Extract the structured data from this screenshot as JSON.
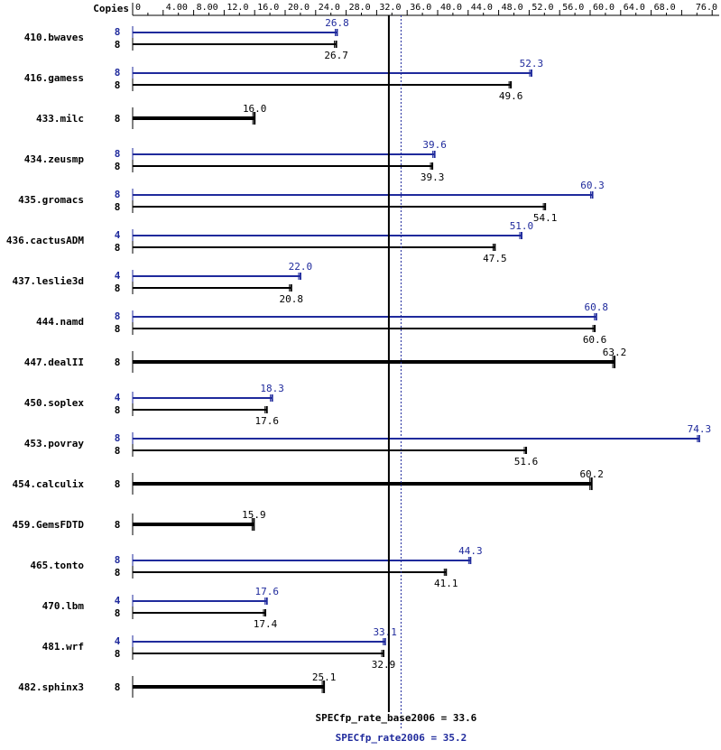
{
  "chart_data": {
    "type": "bar",
    "copies_label": "Copies",
    "x_ticks": [
      "0",
      "4.00",
      "8.00",
      "12.0",
      "16.0",
      "20.0",
      "24.0",
      "28.0",
      "32.0",
      "36.0",
      "40.0",
      "44.0",
      "48.0",
      "52.0",
      "56.0",
      "60.0",
      "64.0",
      "68.0",
      "76.0"
    ],
    "x_tick_values": [
      0,
      4,
      8,
      12,
      16,
      20,
      24,
      28,
      32,
      36,
      40,
      44,
      48,
      52,
      56,
      60,
      64,
      68,
      76
    ],
    "xlim": [
      0,
      76
    ],
    "series": [
      {
        "name": "SPECfp_rate2006",
        "color": "#1f2a9c"
      },
      {
        "name": "SPECfp_rate_base2006",
        "color": "#000000"
      }
    ],
    "benchmarks": [
      {
        "name": "410.bwaves",
        "peak_copies": "8",
        "peak": 26.8,
        "peak_label": "26.8",
        "base_copies": "8",
        "base": 26.7,
        "base_label": "26.7"
      },
      {
        "name": "416.gamess",
        "peak_copies": "8",
        "peak": 52.3,
        "peak_label": "52.3",
        "base_copies": "8",
        "base": 49.6,
        "base_label": "49.6"
      },
      {
        "name": "433.milc",
        "peak_copies": null,
        "peak": null,
        "peak_label": null,
        "base_copies": "8",
        "base": 16.0,
        "base_label": "16.0"
      },
      {
        "name": "434.zeusmp",
        "peak_copies": "8",
        "peak": 39.6,
        "peak_label": "39.6",
        "base_copies": "8",
        "base": 39.3,
        "base_label": "39.3"
      },
      {
        "name": "435.gromacs",
        "peak_copies": "8",
        "peak": 60.3,
        "peak_label": "60.3",
        "base_copies": "8",
        "base": 54.1,
        "base_label": "54.1"
      },
      {
        "name": "436.cactusADM",
        "peak_copies": "4",
        "peak": 51.0,
        "peak_label": "51.0",
        "base_copies": "8",
        "base": 47.5,
        "base_label": "47.5"
      },
      {
        "name": "437.leslie3d",
        "peak_copies": "4",
        "peak": 22.0,
        "peak_label": "22.0",
        "base_copies": "8",
        "base": 20.8,
        "base_label": "20.8"
      },
      {
        "name": "444.namd",
        "peak_copies": "8",
        "peak": 60.8,
        "peak_label": "60.8",
        "base_copies": "8",
        "base": 60.6,
        "base_label": "60.6"
      },
      {
        "name": "447.dealII",
        "peak_copies": null,
        "peak": null,
        "peak_label": null,
        "base_copies": "8",
        "base": 63.2,
        "base_label": "63.2"
      },
      {
        "name": "450.soplex",
        "peak_copies": "4",
        "peak": 18.3,
        "peak_label": "18.3",
        "base_copies": "8",
        "base": 17.6,
        "base_label": "17.6"
      },
      {
        "name": "453.povray",
        "peak_copies": "8",
        "peak": 74.3,
        "peak_label": "74.3",
        "base_copies": "8",
        "base": 51.6,
        "base_label": "51.6"
      },
      {
        "name": "454.calculix",
        "peak_copies": null,
        "peak": null,
        "peak_label": null,
        "base_copies": "8",
        "base": 60.2,
        "base_label": "60.2"
      },
      {
        "name": "459.GemsFDTD",
        "peak_copies": null,
        "peak": null,
        "peak_label": null,
        "base_copies": "8",
        "base": 15.9,
        "base_label": "15.9"
      },
      {
        "name": "465.tonto",
        "peak_copies": "8",
        "peak": 44.3,
        "peak_label": "44.3",
        "base_copies": "8",
        "base": 41.1,
        "base_label": "41.1"
      },
      {
        "name": "470.lbm",
        "peak_copies": "4",
        "peak": 17.6,
        "peak_label": "17.6",
        "base_copies": "8",
        "base": 17.4,
        "base_label": "17.4"
      },
      {
        "name": "481.wrf",
        "peak_copies": "4",
        "peak": 33.1,
        "peak_label": "33.1",
        "base_copies": "8",
        "base": 32.9,
        "base_label": "32.9"
      },
      {
        "name": "482.sphinx3",
        "peak_copies": null,
        "peak": null,
        "peak_label": null,
        "base_copies": "8",
        "base": 25.1,
        "base_label": "25.1"
      }
    ],
    "reference_lines": [
      {
        "label": "SPECfp_rate_base2006 = 33.6",
        "value": 33.6,
        "color": "#000000",
        "style": "solid"
      },
      {
        "label": "SPECfp_rate2006 = 35.2",
        "value": 35.2,
        "color": "#1f2a9c",
        "style": "dotted"
      }
    ]
  }
}
